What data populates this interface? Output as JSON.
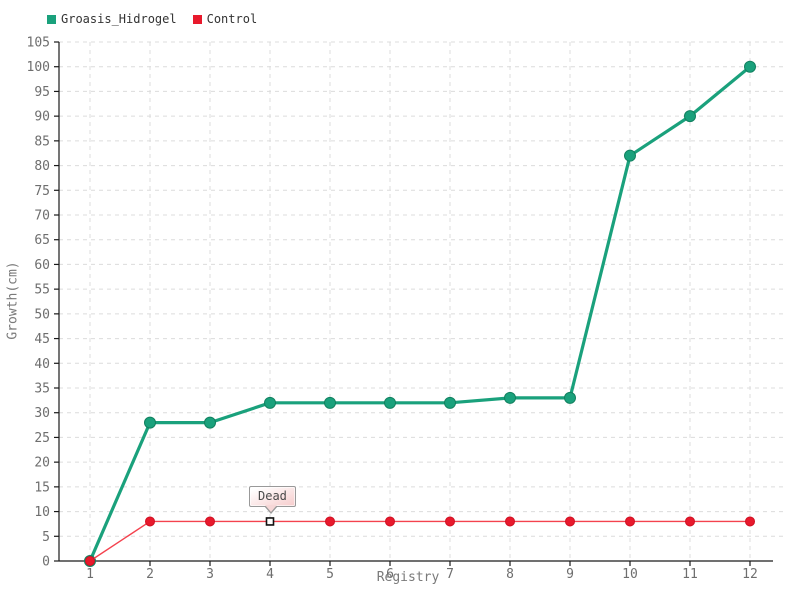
{
  "chart_data": {
    "type": "line",
    "title": "",
    "xlabel": "Registry",
    "ylabel": "Growth(cm)",
    "x": [
      1,
      2,
      3,
      4,
      5,
      6,
      7,
      8,
      9,
      10,
      11,
      12
    ],
    "xtick_labels": [
      "1",
      "2",
      "3",
      "4",
      "5",
      "6",
      "7",
      "8",
      "9",
      "10",
      "11",
      "12"
    ],
    "yticks": [
      0,
      5,
      10,
      15,
      20,
      25,
      30,
      35,
      40,
      45,
      50,
      55,
      60,
      65,
      70,
      75,
      80,
      85,
      90,
      95,
      100,
      105
    ],
    "ylim": [
      0,
      105
    ],
    "grid": true,
    "grid_style": "dashed",
    "legend_position": "top-left",
    "series": [
      {
        "name": "Groasis_Hidrogel",
        "color": "#1aa17c",
        "marker_stroke": "#11805f",
        "line_width": 3.2,
        "marker": "circle",
        "marker_radius": 5.5,
        "values": [
          0,
          28,
          28,
          32,
          32,
          32,
          32,
          33,
          33,
          82,
          90,
          100
        ]
      },
      {
        "name": "Control",
        "color": "#e8192c",
        "line_color": "#f4424e",
        "marker_stroke": "#d01022",
        "line_width": 1.4,
        "marker": "circle",
        "marker_radius": 4.5,
        "values": [
          0,
          8,
          8,
          8,
          8,
          8,
          8,
          8,
          8,
          8,
          8,
          8
        ]
      }
    ],
    "annotation": {
      "label": "Dead",
      "series": "Control",
      "x": 4,
      "y": 8,
      "marker": "open-square"
    }
  },
  "colors": {
    "background": "#ffffff",
    "grid": "#dcdcdc",
    "axis": "#1a1a1a",
    "tick_label": "#6e6e6e",
    "axis_title": "#7a7a7a",
    "legend_text": "#333333",
    "tooltip_border": "#999999",
    "tooltip_text": "#4a4a4a"
  }
}
